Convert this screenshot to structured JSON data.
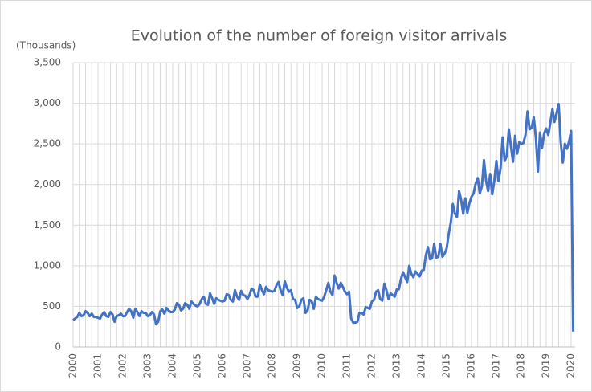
{
  "chart_data": {
    "type": "line",
    "title": "Evolution of the number of foreign visitor arrivals",
    "y_label": "(Thousands)",
    "color": "#4472c4",
    "grid": true,
    "categories": [
      "2000",
      null,
      null,
      null,
      null,
      null,
      null,
      null,
      null,
      null,
      null,
      null,
      "2001",
      null,
      null,
      null,
      null,
      null,
      null,
      null,
      null,
      null,
      null,
      null,
      "2002",
      null,
      null,
      null,
      null,
      null,
      null,
      null,
      null,
      null,
      null,
      null,
      "2003",
      null,
      null,
      null,
      null,
      null,
      null,
      null,
      null,
      null,
      null,
      null,
      "2004",
      null,
      null,
      null,
      null,
      null,
      null,
      null,
      null,
      null,
      null,
      null,
      "2005",
      null,
      null,
      null,
      null,
      null,
      null,
      null,
      null,
      null,
      null,
      null,
      "2006",
      null,
      null,
      null,
      null,
      null,
      null,
      null,
      null,
      null,
      null,
      null,
      "2007",
      null,
      null,
      null,
      null,
      null,
      null,
      null,
      null,
      null,
      null,
      null,
      "2008",
      null,
      null,
      null,
      null,
      null,
      null,
      null,
      null,
      null,
      null,
      null,
      "2009",
      null,
      null,
      null,
      null,
      null,
      null,
      null,
      null,
      null,
      null,
      null,
      "2010",
      null,
      null,
      null,
      null,
      null,
      null,
      null,
      null,
      null,
      null,
      null,
      "2011",
      null,
      null,
      null,
      null,
      null,
      null,
      null,
      null,
      null,
      null,
      null,
      "2012",
      null,
      null,
      null,
      null,
      null,
      null,
      null,
      null,
      null,
      null,
      null,
      "2013",
      null,
      null,
      null,
      null,
      null,
      null,
      null,
      null,
      null,
      null,
      null,
      "2014",
      null,
      null,
      null,
      null,
      null,
      null,
      null,
      null,
      null,
      null,
      null,
      "2015",
      null,
      null,
      null,
      null,
      null,
      null,
      null,
      null,
      null,
      null,
      null,
      "2016",
      null,
      null,
      null,
      null,
      null,
      null,
      null,
      null,
      null,
      null,
      null,
      "2017",
      null,
      null,
      null,
      null,
      null,
      null,
      null,
      null,
      null,
      null,
      null,
      "2018",
      null,
      null,
      null,
      null,
      null,
      null,
      null,
      null,
      null,
      null,
      null,
      "2019",
      null,
      null,
      null,
      null,
      null,
      null,
      null,
      null,
      null,
      null,
      null,
      "2020",
      null
    ],
    "values": [
      330,
      350,
      370,
      420,
      380,
      390,
      440,
      420,
      380,
      410,
      370,
      370,
      360,
      350,
      400,
      430,
      380,
      370,
      430,
      400,
      310,
      380,
      390,
      410,
      380,
      380,
      430,
      470,
      440,
      360,
      470,
      430,
      380,
      440,
      420,
      420,
      380,
      390,
      430,
      400,
      280,
      310,
      440,
      460,
      410,
      480,
      450,
      430,
      430,
      460,
      540,
      520,
      450,
      470,
      540,
      520,
      470,
      560,
      530,
      510,
      500,
      530,
      590,
      620,
      530,
      520,
      660,
      600,
      530,
      600,
      580,
      570,
      560,
      570,
      650,
      640,
      580,
      560,
      700,
      620,
      580,
      690,
      640,
      630,
      590,
      640,
      720,
      700,
      620,
      620,
      770,
      700,
      650,
      740,
      700,
      690,
      680,
      690,
      760,
      800,
      700,
      640,
      810,
      730,
      680,
      700,
      590,
      580,
      480,
      500,
      580,
      600,
      420,
      450,
      580,
      560,
      470,
      620,
      590,
      580,
      570,
      620,
      700,
      790,
      680,
      640,
      880,
      790,
      720,
      790,
      740,
      680,
      650,
      680,
      350,
      300,
      300,
      310,
      420,
      420,
      400,
      490,
      480,
      470,
      560,
      580,
      680,
      700,
      590,
      570,
      780,
      700,
      590,
      660,
      640,
      620,
      710,
      710,
      840,
      920,
      860,
      800,
      1000,
      900,
      860,
      930,
      900,
      870,
      940,
      950,
      1130,
      1230,
      1080,
      1090,
      1270,
      1100,
      1110,
      1270,
      1110,
      1150,
      1210,
      1390,
      1530,
      1760,
      1640,
      1600,
      1920,
      1810,
      1640,
      1830,
      1650,
      1770,
      1850,
      1890,
      2010,
      2080,
      1890,
      1980,
      2300,
      2050,
      1920,
      2130,
      1880,
      2050,
      2290,
      2040,
      2200,
      2580,
      2290,
      2350,
      2680,
      2470,
      2280,
      2600,
      2380,
      2520,
      2500,
      2510,
      2610,
      2900,
      2680,
      2700,
      2830,
      2580,
      2160,
      2640,
      2450,
      2630,
      2690,
      2610,
      2760,
      2930,
      2770,
      2880,
      2990,
      2520,
      2270,
      2500,
      2440,
      2530,
      2660,
      190
    ],
    "ylim": [
      0,
      3500
    ],
    "yticks": [
      0,
      {
        "value": 500,
        "label": "500"
      },
      {
        "value": 1000,
        "label": "1,000"
      },
      {
        "value": 1500,
        "label": "1,500"
      },
      {
        "value": 2000,
        "label": "2,000"
      },
      {
        "value": 2500,
        "label": "2,500"
      },
      {
        "value": 3000,
        "label": "3,000"
      },
      {
        "value": 3500,
        "label": "3,500"
      }
    ]
  }
}
